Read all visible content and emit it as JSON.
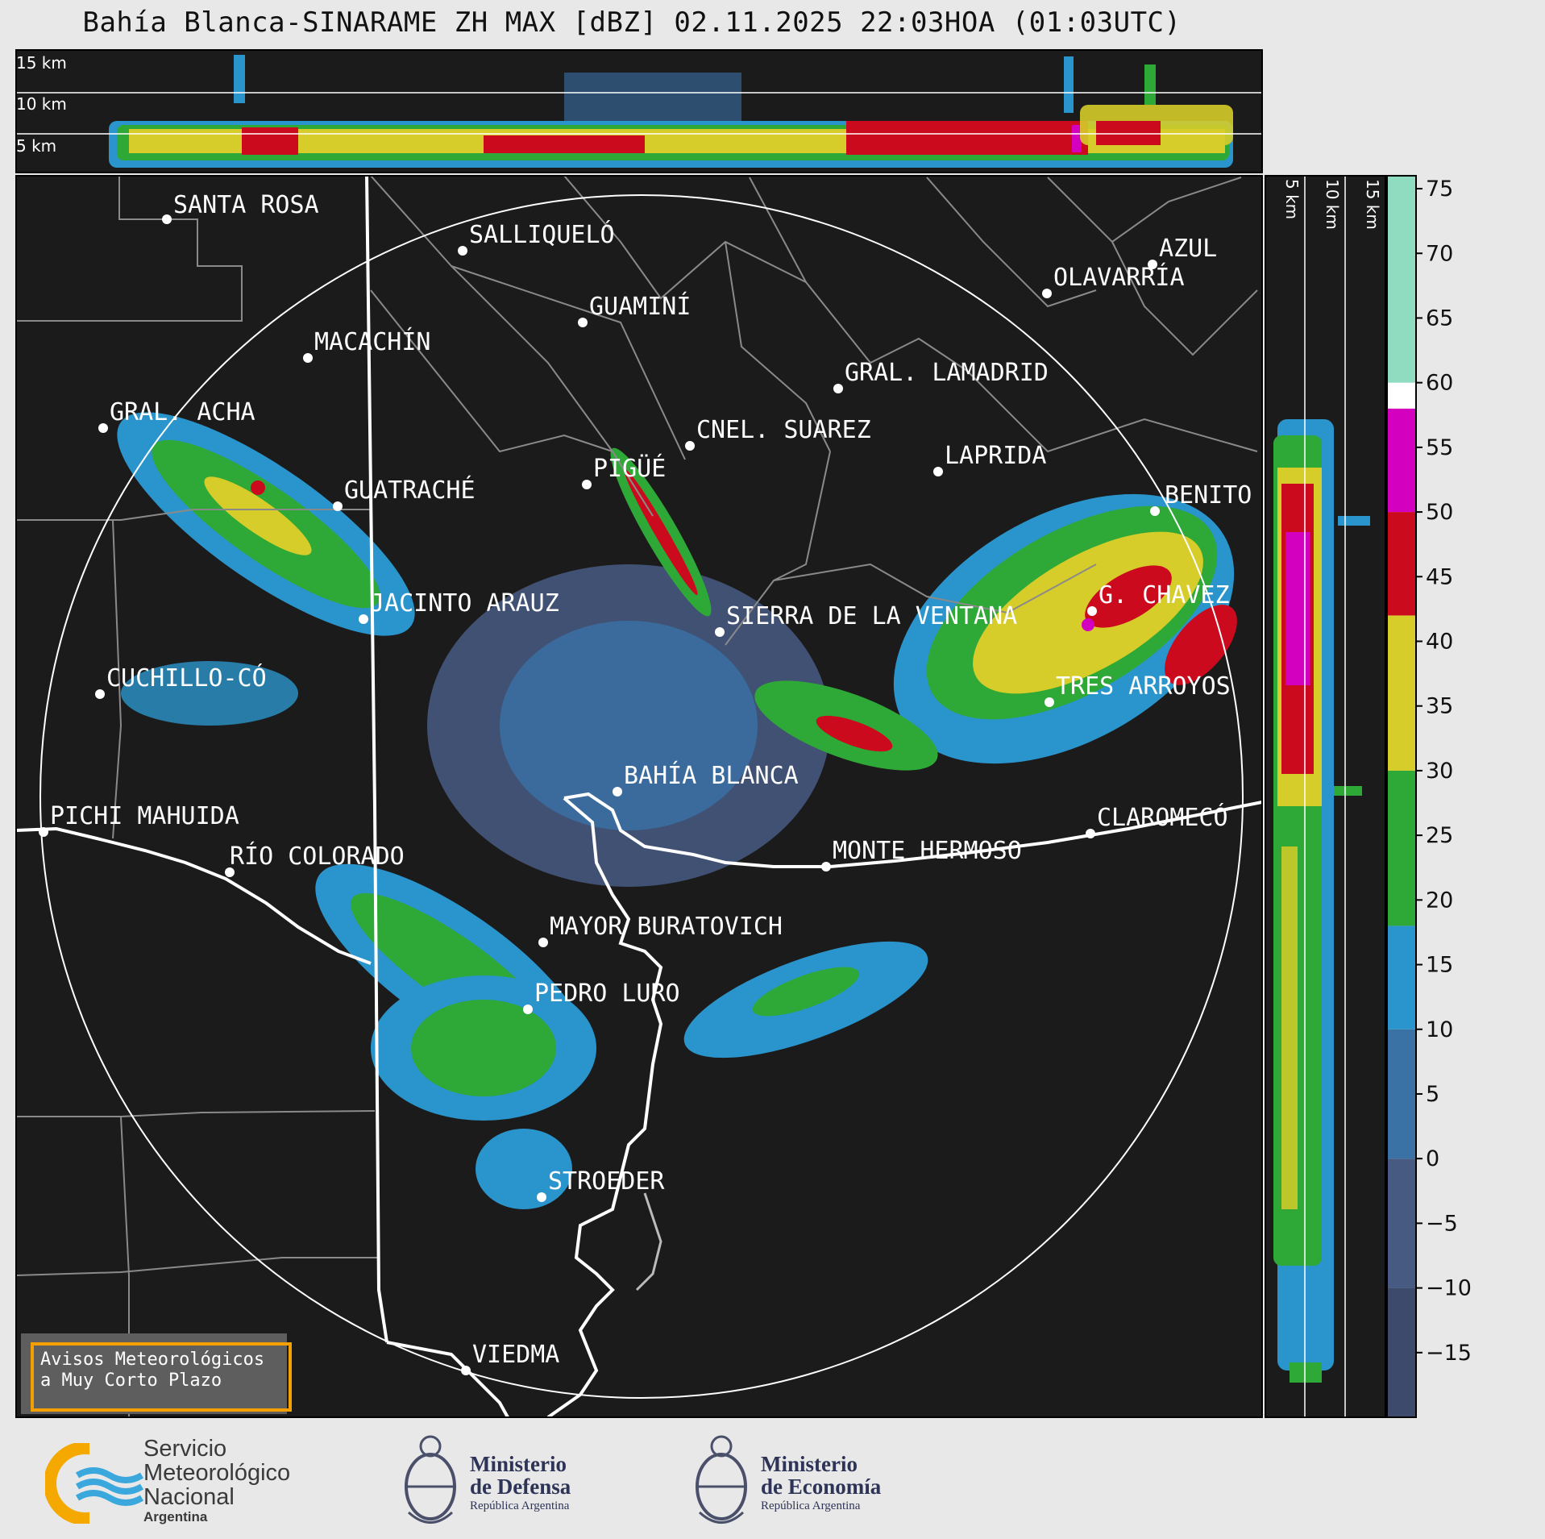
{
  "title": "Bahía Blanca-SINARAME ZH MAX [dBZ] 02.11.2025 22:03HOA (01:03UTC)",
  "top_panel": {
    "altitude_labels": [
      "15 km",
      "10 km",
      "5 km"
    ]
  },
  "side_panel": {
    "altitude_labels": [
      "5 km",
      "10 km",
      "15 km"
    ]
  },
  "cities": [
    {
      "name": "SANTA ROSA"
    },
    {
      "name": "SALLIQUELÓ"
    },
    {
      "name": "AZUL"
    },
    {
      "name": "OLAVARRÍA"
    },
    {
      "name": "GUAMINÍ"
    },
    {
      "name": "MACACHÍN"
    },
    {
      "name": "GRAL. LAMADRID"
    },
    {
      "name": "GRAL. ACHA"
    },
    {
      "name": "CNEL. SUAREZ"
    },
    {
      "name": "LAPRIDA"
    },
    {
      "name": "PIGÜÉ"
    },
    {
      "name": "GUATRACHÉ"
    },
    {
      "name": "BENITO"
    },
    {
      "name": "JACINTO ARAUZ"
    },
    {
      "name": "SIERRA DE LA VENTANA"
    },
    {
      "name": "G. CHAVEZ"
    },
    {
      "name": "CUCHILLO-CÓ"
    },
    {
      "name": "TRES ARROYOS"
    },
    {
      "name": "BAHÍA BLANCA"
    },
    {
      "name": "PICHI MAHUIDA"
    },
    {
      "name": "CLAROMECÓ"
    },
    {
      "name": "MONTE HERMOSO"
    },
    {
      "name": "RÍO COLORADO"
    },
    {
      "name": "MAYOR BURATOVICH"
    },
    {
      "name": "PEDRO LURO"
    },
    {
      "name": "STROEDER"
    },
    {
      "name": "VIEDMA"
    }
  ],
  "colorbar": {
    "unit": "dBZ",
    "ticks": [
      "75",
      "70",
      "65",
      "60",
      "55",
      "50",
      "45",
      "40",
      "35",
      "30",
      "25",
      "20",
      "15",
      "10",
      "5",
      "0",
      "−5",
      "−10",
      "−15"
    ],
    "range": [
      -20,
      76
    ],
    "bands": [
      {
        "from": -20,
        "to": -10,
        "color": "#3d4a6b"
      },
      {
        "from": -10,
        "to": 0,
        "color": "#475a82"
      },
      {
        "from": 0,
        "to": 10,
        "color": "#3a72a6"
      },
      {
        "from": 10,
        "to": 18,
        "color": "#2a95cc"
      },
      {
        "from": 18,
        "to": 30,
        "color": "#2ea836"
      },
      {
        "from": 30,
        "to": 42,
        "color": "#d6cc2a"
      },
      {
        "from": 42,
        "to": 50,
        "color": "#cc0a1e"
      },
      {
        "from": 50,
        "to": 58,
        "color": "#d400c0"
      },
      {
        "from": 58,
        "to": 60,
        "color": "#ffffff"
      },
      {
        "from": 60,
        "to": 76,
        "color": "#8fdcc0"
      }
    ]
  },
  "avisos": {
    "line1": "Avisos Meteorológicos",
    "line2": "a Muy Corto Plazo"
  },
  "footer": {
    "smn": {
      "line1": "Servicio",
      "line2": "Meteorológico",
      "line3": "Nacional",
      "line4": "Argentina"
    },
    "defensa": {
      "line1": "Ministerio",
      "line2": "de Defensa",
      "line3": "República Argentina"
    },
    "economia": {
      "line1": "Ministerio",
      "line2": "de Economía",
      "line3": "República Argentina"
    }
  }
}
